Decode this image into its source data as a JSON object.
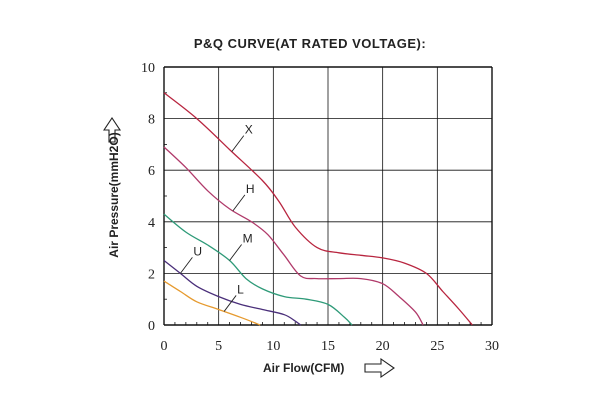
{
  "chart_data": {
    "type": "line",
    "title": "P&Q CURVE(AT RATED VOLTAGE):",
    "xlabel": "Air Flow(CFM)",
    "ylabel": "Air Pressure(mmH2O)",
    "xlim": [
      0,
      30
    ],
    "ylim": [
      0,
      10
    ],
    "xticks": [
      "0",
      "5",
      "10",
      "15",
      "20",
      "25",
      "30"
    ],
    "yticks": [
      "0",
      "2",
      "4",
      "6",
      "8",
      "10"
    ],
    "grid": true,
    "series": [
      {
        "name": "X",
        "color": "#b8253f",
        "points": [
          [
            0,
            9.0
          ],
          [
            3,
            8.0
          ],
          [
            6,
            6.8
          ],
          [
            9,
            5.6
          ],
          [
            10.5,
            4.8
          ],
          [
            12,
            3.8
          ],
          [
            14,
            3.0
          ],
          [
            16,
            2.8
          ],
          [
            18,
            2.7
          ],
          [
            20,
            2.6
          ],
          [
            22,
            2.4
          ],
          [
            24,
            2.0
          ],
          [
            25.5,
            1.3
          ],
          [
            27,
            0.6
          ],
          [
            28.2,
            0.0
          ]
        ]
      },
      {
        "name": "H",
        "color": "#b03a6a",
        "points": [
          [
            0,
            6.9
          ],
          [
            2,
            6.1
          ],
          [
            4,
            5.2
          ],
          [
            6,
            4.5
          ],
          [
            8,
            4.0
          ],
          [
            9.5,
            3.5
          ],
          [
            11,
            2.7
          ],
          [
            12.5,
            1.9
          ],
          [
            14,
            1.8
          ],
          [
            16,
            1.8
          ],
          [
            18,
            1.8
          ],
          [
            20,
            1.6
          ],
          [
            21.5,
            1.1
          ],
          [
            23,
            0.5
          ],
          [
            23.7,
            0.0
          ]
        ]
      },
      {
        "name": "M",
        "color": "#2e9a78",
        "points": [
          [
            0,
            4.3
          ],
          [
            2,
            3.6
          ],
          [
            4,
            3.1
          ],
          [
            6,
            2.5
          ],
          [
            7.5,
            1.8
          ],
          [
            9,
            1.4
          ],
          [
            11,
            1.1
          ],
          [
            13,
            1.0
          ],
          [
            15,
            0.8
          ],
          [
            16.5,
            0.3
          ],
          [
            17.2,
            0.0
          ]
        ]
      },
      {
        "name": "U",
        "color": "#4a2f7a",
        "points": [
          [
            0,
            2.5
          ],
          [
            1.5,
            2.0
          ],
          [
            3,
            1.5
          ],
          [
            5,
            1.1
          ],
          [
            7,
            0.8
          ],
          [
            9,
            0.6
          ],
          [
            11,
            0.4
          ],
          [
            12,
            0.15
          ],
          [
            12.5,
            0.0
          ]
        ]
      },
      {
        "name": "L",
        "color": "#e69a2e",
        "points": [
          [
            0,
            1.7
          ],
          [
            1.5,
            1.3
          ],
          [
            3,
            0.9
          ],
          [
            5,
            0.6
          ],
          [
            7,
            0.3
          ],
          [
            8.8,
            0.0
          ]
        ]
      }
    ]
  }
}
